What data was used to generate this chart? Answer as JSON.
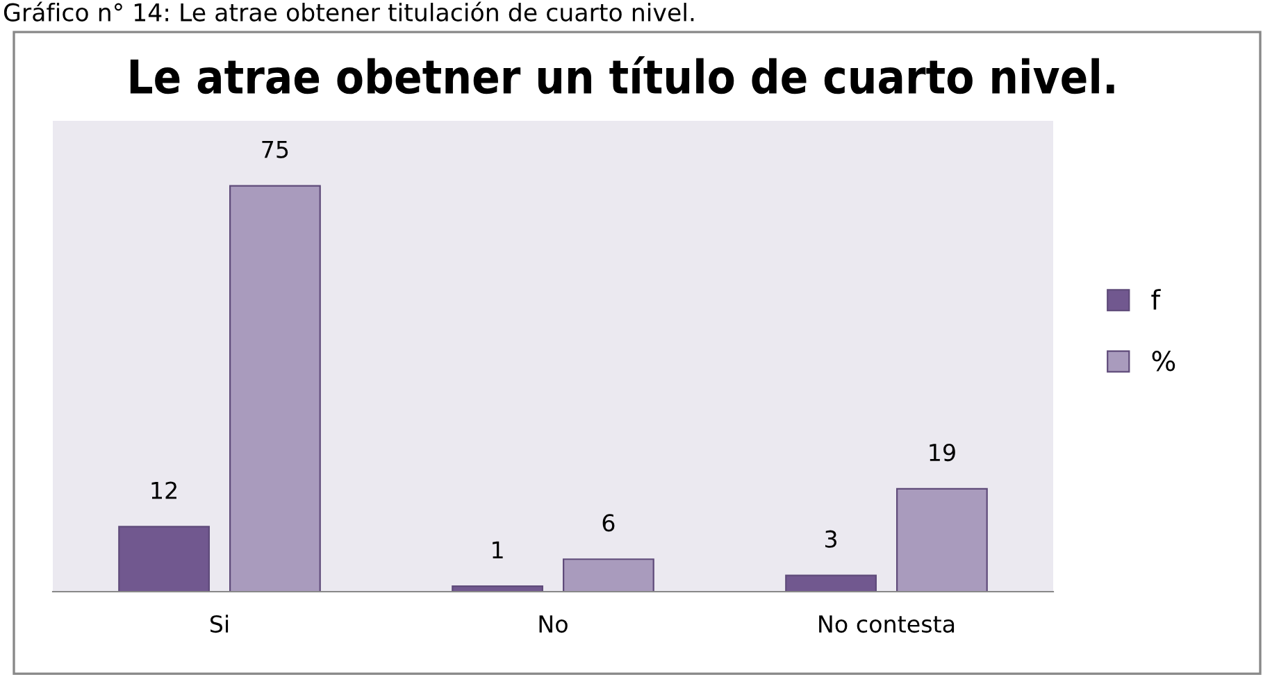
{
  "chart_data": {
    "type": "bar",
    "title": "Le atrae obetner un título de cuarto nivel.",
    "annotations": [
      "Gráfico n° 14: Le atrae obtener titulación de cuarto nivel."
    ],
    "categories": [
      "Si",
      "No",
      "No contesta"
    ],
    "series": [
      {
        "name": "f",
        "color": "#71588f",
        "values": [
          12,
          1,
          3
        ]
      },
      {
        "name": "%",
        "color": "#a99bbd",
        "values": [
          75,
          6,
          19
        ]
      }
    ],
    "ylim": [
      0,
      87
    ],
    "tick_labels": "x",
    "data_labels": true,
    "legend": "right",
    "grid": false
  }
}
